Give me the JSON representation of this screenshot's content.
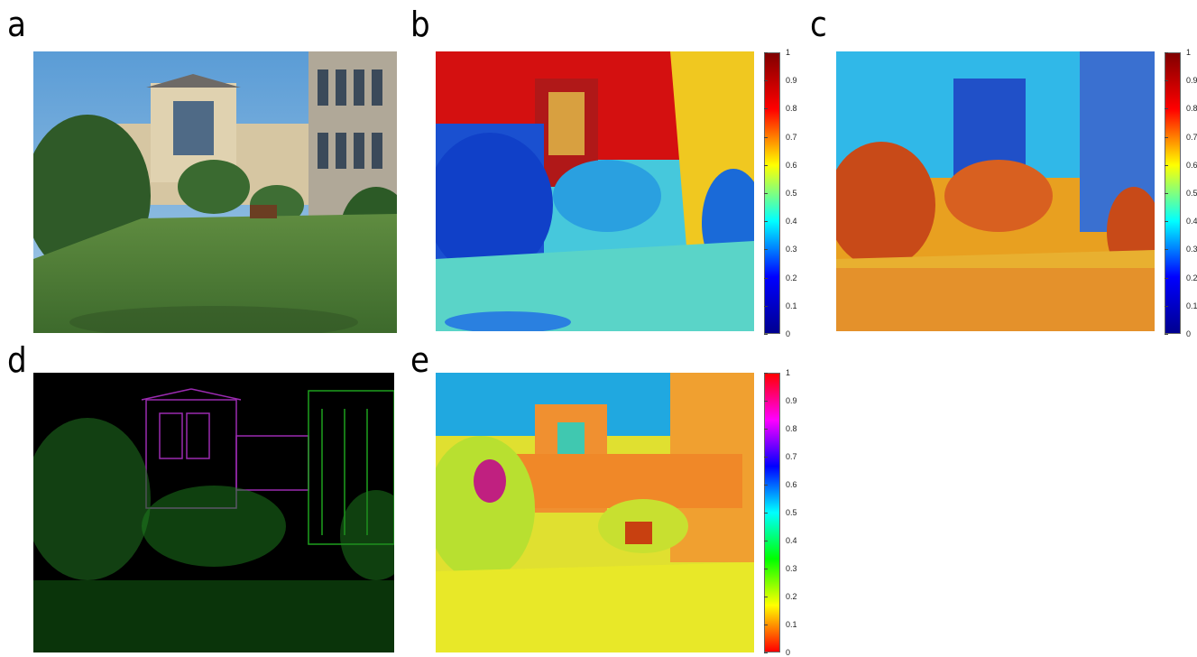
{
  "panels": [
    {
      "id": "a",
      "label": "a"
    },
    {
      "id": "b",
      "label": "b"
    },
    {
      "id": "c",
      "label": "c"
    },
    {
      "id": "d",
      "label": "d"
    },
    {
      "id": "e",
      "label": "e"
    }
  ],
  "colorbars": {
    "b": {
      "ticks": [
        "0",
        "0.1",
        "0.2",
        "0.3",
        "0.4",
        "0.5",
        "0.6",
        "0.7",
        "0.8",
        "0.9",
        "1"
      ],
      "colormap": "jet"
    },
    "c": {
      "ticks": [
        "0",
        "0.1",
        "0.2",
        "0.3",
        "0.4",
        "0.5",
        "0.6",
        "0.7",
        "0.8",
        "0.9",
        "1"
      ],
      "colormap": "jet"
    },
    "e": {
      "ticks": [
        "0",
        "0.1",
        "0.2",
        "0.3",
        "0.4",
        "0.5",
        "0.6",
        "0.7",
        "0.8",
        "0.9",
        "1"
      ],
      "colormap": "hsv"
    }
  },
  "colors": {
    "sky": "#6aa8d8",
    "building": "#d8c9a6",
    "grass": "#4d7a36",
    "tree": "#2f5a28",
    "jet_hi": "#c81010",
    "jet_lo": "#1020b0",
    "edge_bg": "#000000",
    "edge_green": "#1ea01e",
    "edge_purple": "#9a2ab0"
  }
}
